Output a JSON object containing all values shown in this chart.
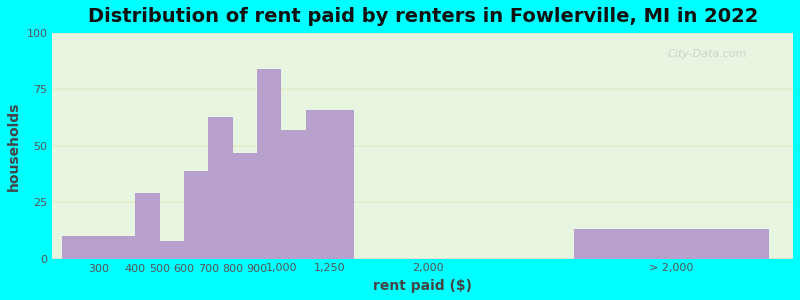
{
  "title": "Distribution of rent paid by renters in Fowlerville, MI in 2022",
  "xlabel": "rent paid ($)",
  "ylabel": "households",
  "bar_color": "#b8a0cc",
  "background_color_top": "#e8f5e0",
  "background_color_bottom": "#f0faf0",
  "outer_background": "#00ffff",
  "ylim": [
    0,
    100
  ],
  "yticks": [
    0,
    25,
    50,
    75,
    100
  ],
  "categories": [
    "300",
    "400",
    "500",
    "600",
    "700",
    "800",
    "900",
    "1,000",
    "1,250",
    "2,000",
    "> 2,000"
  ],
  "values": [
    10,
    29,
    8,
    39,
    63,
    47,
    84,
    57,
    66,
    0,
    13
  ],
  "bar_lefts": [
    0.0,
    1.5,
    2.0,
    2.5,
    3.0,
    3.5,
    4.0,
    4.5,
    5.0,
    7.5,
    10.5
  ],
  "bar_rights": [
    1.5,
    2.0,
    2.5,
    3.0,
    3.5,
    4.0,
    4.5,
    5.0,
    6.0,
    7.5,
    14.5
  ],
  "tick_x": [
    0.75,
    1.5,
    2.0,
    2.5,
    3.0,
    3.5,
    4.0,
    4.5,
    5.5,
    7.5,
    12.5
  ],
  "grid_color": "#ddeecc",
  "title_fontsize": 14,
  "axis_label_fontsize": 10,
  "tick_fontsize": 8,
  "watermark": "City-Data.com"
}
